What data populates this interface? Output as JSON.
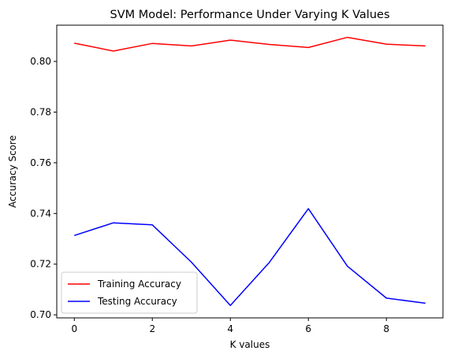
{
  "chart_data": {
    "type": "line",
    "title": "SVM Model: Performance Under Varying K Values",
    "xlabel": "K values",
    "ylabel": "Accuracy Score",
    "x": [
      0,
      1,
      2,
      3,
      4,
      5,
      6,
      7,
      8,
      9
    ],
    "xlim": [
      -0.45,
      9.45
    ],
    "ylim": [
      0.6988,
      0.8143
    ],
    "xticks": [
      0,
      2,
      4,
      6,
      8
    ],
    "xtick_labels": [
      "0",
      "2",
      "4",
      "6",
      "8"
    ],
    "yticks": [
      0.7,
      0.72,
      0.74,
      0.76,
      0.78,
      0.8
    ],
    "ytick_labels": [
      "0.70",
      "0.72",
      "0.74",
      "0.76",
      "0.78",
      "0.80"
    ],
    "grid": false,
    "legend_position": "bottom-left",
    "series": [
      {
        "name": "Training Accuracy",
        "color": "#ff0000",
        "values": [
          0.8072,
          0.8041,
          0.8071,
          0.8061,
          0.8084,
          0.8067,
          0.8055,
          0.8095,
          0.8068,
          0.8061
        ]
      },
      {
        "name": "Testing Accuracy",
        "color": "#0000ff",
        "values": [
          0.7313,
          0.7363,
          0.7355,
          0.7208,
          0.7037,
          0.7207,
          0.7419,
          0.7192,
          0.7066,
          0.7046
        ]
      }
    ]
  }
}
